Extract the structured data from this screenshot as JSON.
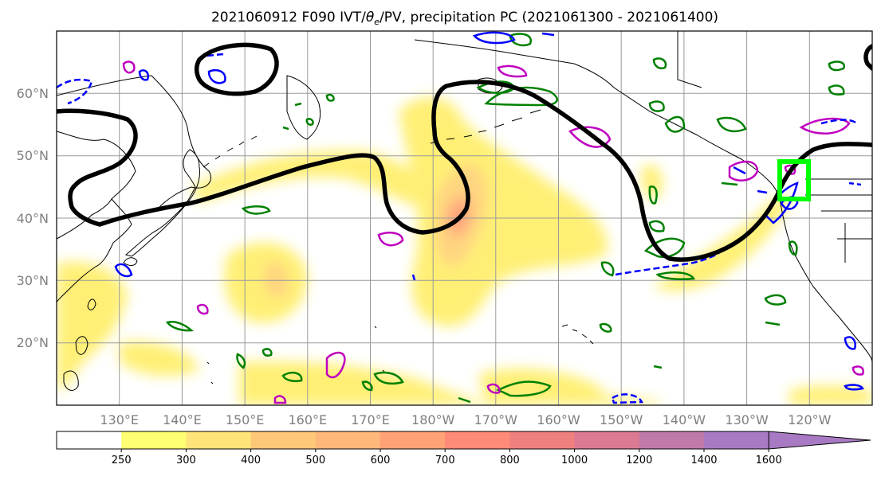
{
  "title": "2021060912 F090 IVT/θe/PV, precipitation PC (2021061300 - 2021061400)",
  "title_parts": {
    "prefix": "2021060912 F090 IVT/",
    "theta": "θ",
    "theta_sub": "e",
    "suffix": "/PV, precipitation PC (2021061300 - 2021061400)"
  },
  "map": {
    "lat_labels": [
      "60°N",
      "50°N",
      "40°N",
      "30°N",
      "20°N"
    ],
    "lon_labels": [
      "130°E",
      "140°E",
      "150°E",
      "160°E",
      "170°E",
      "180°W",
      "170°W",
      "160°W",
      "150°W",
      "140°W",
      "130°W",
      "120°W"
    ],
    "lat_range": [
      10,
      70
    ],
    "lon_range": [
      120,
      250
    ]
  },
  "colorbar": {
    "levels": [
      "250",
      "300",
      "400",
      "500",
      "600",
      "700",
      "800",
      "1000",
      "1200",
      "1400",
      "1600"
    ],
    "colors": [
      "#ffffff",
      "#ffff73",
      "#ffe47a",
      "#ffc878",
      "#ffb77a",
      "#ffa276",
      "#ff8a78",
      "#f07f80",
      "#dc7a94",
      "#c07aaa",
      "#a87ac3"
    ],
    "extend": "max"
  }
}
